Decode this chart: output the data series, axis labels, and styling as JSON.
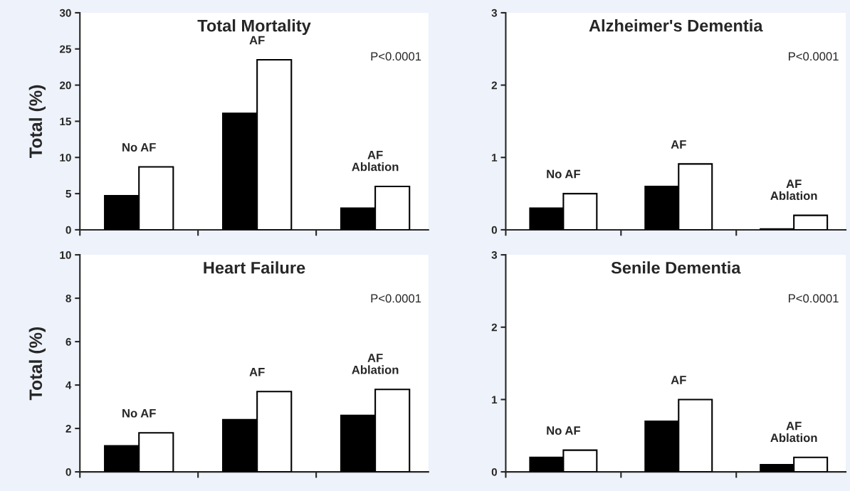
{
  "chart_data": [
    {
      "type": "bar",
      "title": "Total Mortality",
      "ylabel": "Total (%)",
      "categories": [
        "No AF",
        "AF",
        "AF\nAblation"
      ],
      "tick_labels": "y",
      "grid": false,
      "legend": false,
      "ylim": [
        0,
        30
      ],
      "yticks": [
        0,
        5,
        10,
        15,
        20,
        25,
        30
      ],
      "annotations": [
        "P<0.0001"
      ],
      "series": [
        {
          "color": "#000000",
          "values": [
            4.7,
            16.1,
            3.0
          ]
        },
        {
          "color": "#ffffff",
          "values": [
            8.7,
            23.5,
            6.0
          ]
        }
      ]
    },
    {
      "type": "bar",
      "title": "Alzheimer's Dementia",
      "categories": [
        "No AF",
        "AF",
        "AF\nAblation"
      ],
      "tick_labels": "y",
      "grid": false,
      "legend": false,
      "ylim": [
        0,
        3
      ],
      "yticks": [
        0,
        1,
        2,
        3
      ],
      "annotations": [
        "P<0.0001"
      ],
      "series": [
        {
          "color": "#000000",
          "values": [
            0.3,
            0.6,
            0.01
          ]
        },
        {
          "color": "#ffffff",
          "values": [
            0.5,
            0.91,
            0.2
          ]
        }
      ]
    },
    {
      "type": "bar",
      "title": "Heart Failure",
      "ylabel": "Total (%)",
      "categories": [
        "No AF",
        "AF",
        "AF\nAblation"
      ],
      "tick_labels": "y",
      "grid": false,
      "legend": false,
      "ylim": [
        0,
        10
      ],
      "yticks": [
        0,
        2,
        4,
        6,
        8,
        10
      ],
      "annotations": [
        "P<0.0001"
      ],
      "series": [
        {
          "color": "#000000",
          "values": [
            1.2,
            2.4,
            2.6
          ]
        },
        {
          "color": "#ffffff",
          "values": [
            1.8,
            3.7,
            3.8
          ]
        }
      ]
    },
    {
      "type": "bar",
      "title": "Senile Dementia",
      "categories": [
        "No AF",
        "AF",
        "AF\nAblation"
      ],
      "tick_labels": "y",
      "grid": false,
      "legend": false,
      "ylim": [
        0,
        3
      ],
      "yticks": [
        0,
        1,
        2,
        3
      ],
      "annotations": [
        "P<0.0001"
      ],
      "series": [
        {
          "color": "#000000",
          "values": [
            0.2,
            0.7,
            0.1
          ]
        },
        {
          "color": "#ffffff",
          "values": [
            0.3,
            1.0,
            0.2
          ]
        }
      ]
    }
  ]
}
